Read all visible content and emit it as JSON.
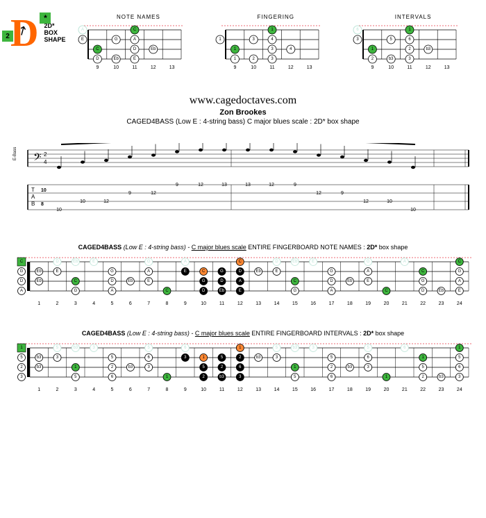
{
  "shape": {
    "letter": "D",
    "star": "*",
    "box2": "2",
    "label_line1": "2D*",
    "label_line2": "BOX",
    "label_line3": "SHAPE"
  },
  "mini": {
    "titles": [
      "NOTE NAMES",
      "FINGERING",
      "INTERVALS"
    ],
    "frets": [
      "9",
      "10",
      "11",
      "12",
      "13"
    ],
    "strings": 4,
    "diagrams": [
      {
        "notes": [
          {
            "s": 0,
            "f": 0,
            "t": "A",
            "ghost": true
          },
          {
            "s": 0,
            "f": 3,
            "t": "C",
            "root": true
          },
          {
            "s": 1,
            "f": 0,
            "t": "E"
          },
          {
            "s": 1,
            "f": 2,
            "t": "G"
          },
          {
            "s": 1,
            "f": 3,
            "t": "A"
          },
          {
            "s": 2,
            "f": 1,
            "t": "C",
            "root": true
          },
          {
            "s": 2,
            "f": 3,
            "t": "D"
          },
          {
            "s": 2,
            "f": 4,
            "t": "Eb"
          },
          {
            "s": 3,
            "f": 1,
            "t": "D"
          },
          {
            "s": 3,
            "f": 2,
            "t": "Eb"
          },
          {
            "s": 3,
            "f": 3,
            "t": "E"
          }
        ]
      },
      {
        "notes": [
          {
            "s": 0,
            "f": 3,
            "t": "1",
            "root": true
          },
          {
            "s": 1,
            "f": 0,
            "t": "1"
          },
          {
            "s": 1,
            "f": 2,
            "t": "3"
          },
          {
            "s": 1,
            "f": 3,
            "t": "4"
          },
          {
            "s": 2,
            "f": 1,
            "t": "1",
            "root": true
          },
          {
            "s": 2,
            "f": 3,
            "t": "3"
          },
          {
            "s": 2,
            "f": 4,
            "t": "4"
          },
          {
            "s": 3,
            "f": 1,
            "t": "1"
          },
          {
            "s": 3,
            "f": 2,
            "t": "2"
          },
          {
            "s": 3,
            "f": 3,
            "t": "3"
          }
        ]
      },
      {
        "notes": [
          {
            "s": 0,
            "f": 0,
            "t": "6",
            "ghost": true
          },
          {
            "s": 0,
            "f": 3,
            "t": "1",
            "root": true
          },
          {
            "s": 1,
            "f": 0,
            "t": "3"
          },
          {
            "s": 1,
            "f": 2,
            "t": "5"
          },
          {
            "s": 1,
            "f": 3,
            "t": "6"
          },
          {
            "s": 2,
            "f": 1,
            "t": "1",
            "root": true
          },
          {
            "s": 2,
            "f": 3,
            "t": "2"
          },
          {
            "s": 2,
            "f": 4,
            "t": "b3"
          },
          {
            "s": 3,
            "f": 1,
            "t": "2"
          },
          {
            "s": 3,
            "f": 2,
            "t": "b3"
          },
          {
            "s": 3,
            "f": 3,
            "t": "3"
          }
        ]
      }
    ]
  },
  "header": {
    "url": "www.cagedoctaves.com",
    "author": "Zon Brookes",
    "desc": "CAGED4BASS (Low E : 4-string bass) C major blues scale : 2D* box shape"
  },
  "tab": {
    "label": "E-Bass",
    "lines": [
      "                          9     12          13      12    9                                      ",
      "               9    12                                          12    9                           ",
      "    10   12                                                                12   10                ",
      "10                                                                                     10         "
    ]
  },
  "full": {
    "strings": [
      "G",
      "D",
      "A",
      "E"
    ],
    "fret_nums": [
      "1",
      "2",
      "3",
      "4",
      "5",
      "6",
      "7",
      "8",
      "9",
      "10",
      "11",
      "12",
      "13",
      "14",
      "15",
      "16",
      "17",
      "18",
      "19",
      "20",
      "21",
      "22",
      "23",
      "24"
    ],
    "title1_parts": {
      "a": "CAGED4BASS",
      "b": "(Low E : 4-string bass)  - ",
      "c": "C major blues scale",
      "d": " ENTIRE FINGERBOARD  NOTE NAMES : ",
      "e": "2D*",
      "f": " box shape"
    },
    "title2_parts": {
      "a": "CAGED4BASS",
      "b": "(Low E : 4-string bass)  - ",
      "c": "C major blues scale",
      "d": " ENTIRE FINGERBOARD  INTERVALS : ",
      "e": "2D*",
      "f": " box shape"
    },
    "diag1": [
      {
        "s": 0,
        "f": 0,
        "t": "C",
        "root": true
      },
      {
        "s": 0,
        "f": 2,
        "t": "D",
        "ghost": true
      },
      {
        "s": 0,
        "f": 3,
        "t": "Eb",
        "ghost": true
      },
      {
        "s": 0,
        "f": 4,
        "t": "E",
        "ghost": true
      },
      {
        "s": 0,
        "f": 7,
        "t": "G",
        "ghost": true
      },
      {
        "s": 0,
        "f": 9,
        "t": "A",
        "ghost": true
      },
      {
        "s": 0,
        "f": 12,
        "t": "C",
        "orange": true
      },
      {
        "s": 0,
        "f": 14,
        "t": "D",
        "ghost": true
      },
      {
        "s": 0,
        "f": 15,
        "t": "Eb",
        "ghost": true
      },
      {
        "s": 0,
        "f": 16,
        "t": "E",
        "ghost": true
      },
      {
        "s": 0,
        "f": 19,
        "t": "G",
        "ghost": true
      },
      {
        "s": 0,
        "f": 21,
        "t": "A",
        "ghost": true
      },
      {
        "s": 0,
        "f": 24,
        "t": "C",
        "root": true
      },
      {
        "s": 1,
        "f": 0,
        "t": "G"
      },
      {
        "s": 1,
        "f": 1,
        "t": "Eb"
      },
      {
        "s": 1,
        "f": 2,
        "t": "E"
      },
      {
        "s": 1,
        "f": 5,
        "t": "G"
      },
      {
        "s": 1,
        "f": 7,
        "t": "A"
      },
      {
        "s": 1,
        "f": 9,
        "t": "E",
        "black": true
      },
      {
        "s": 1,
        "f": 10,
        "t": "C",
        "orange": true
      },
      {
        "s": 1,
        "f": 11,
        "t": "G",
        "black": true
      },
      {
        "s": 1,
        "f": 12,
        "t": "D",
        "black": true
      },
      {
        "s": 1,
        "f": 13,
        "t": "Eb"
      },
      {
        "s": 1,
        "f": 14,
        "t": "E"
      },
      {
        "s": 1,
        "f": 17,
        "t": "G"
      },
      {
        "s": 1,
        "f": 19,
        "t": "A"
      },
      {
        "s": 1,
        "f": 22,
        "t": "C",
        "root": true
      },
      {
        "s": 1,
        "f": 24,
        "t": "G"
      },
      {
        "s": 2,
        "f": 0,
        "t": "D"
      },
      {
        "s": 2,
        "f": 1,
        "t": "Eb"
      },
      {
        "s": 2,
        "f": 3,
        "t": "C",
        "root": true
      },
      {
        "s": 2,
        "f": 5,
        "t": "D"
      },
      {
        "s": 2,
        "f": 6,
        "t": "Eb"
      },
      {
        "s": 2,
        "f": 7,
        "t": "E"
      },
      {
        "s": 2,
        "f": 10,
        "t": "G",
        "black": true
      },
      {
        "s": 2,
        "f": 11,
        "t": "D",
        "black": true
      },
      {
        "s": 2,
        "f": 12,
        "t": "A",
        "black": true
      },
      {
        "s": 2,
        "f": 15,
        "t": "C",
        "root": true
      },
      {
        "s": 2,
        "f": 17,
        "t": "D"
      },
      {
        "s": 2,
        "f": 18,
        "t": "Eb"
      },
      {
        "s": 2,
        "f": 19,
        "t": "E"
      },
      {
        "s": 2,
        "f": 22,
        "t": "G"
      },
      {
        "s": 2,
        "f": 24,
        "t": "A"
      },
      {
        "s": 3,
        "f": 0,
        "t": "A"
      },
      {
        "s": 3,
        "f": 3,
        "t": "G"
      },
      {
        "s": 3,
        "f": 5,
        "t": "A"
      },
      {
        "s": 3,
        "f": 8,
        "t": "C",
        "root": true
      },
      {
        "s": 3,
        "f": 10,
        "t": "D",
        "black": true
      },
      {
        "s": 3,
        "f": 11,
        "t": "Eb",
        "black": true
      },
      {
        "s": 3,
        "f": 12,
        "t": "E",
        "black": true
      },
      {
        "s": 3,
        "f": 15,
        "t": "G"
      },
      {
        "s": 3,
        "f": 17,
        "t": "A"
      },
      {
        "s": 3,
        "f": 20,
        "t": "C",
        "root": true
      },
      {
        "s": 3,
        "f": 22,
        "t": "D"
      },
      {
        "s": 3,
        "f": 23,
        "t": "Eb"
      },
      {
        "s": 3,
        "f": 24,
        "t": "E"
      }
    ],
    "diag2": [
      {
        "s": 0,
        "f": 0,
        "t": "1",
        "root": true
      },
      {
        "s": 0,
        "f": 2,
        "t": "5",
        "ghost": true
      },
      {
        "s": 0,
        "f": 3,
        "t": "b3",
        "ghost": true
      },
      {
        "s": 0,
        "f": 4,
        "t": "3",
        "ghost": true
      },
      {
        "s": 0,
        "f": 7,
        "t": "5",
        "ghost": true
      },
      {
        "s": 0,
        "f": 9,
        "t": "6",
        "ghost": true
      },
      {
        "s": 0,
        "f": 12,
        "t": "1",
        "orange": true
      },
      {
        "s": 0,
        "f": 14,
        "t": "5",
        "ghost": true
      },
      {
        "s": 0,
        "f": 15,
        "t": "b3",
        "ghost": true
      },
      {
        "s": 0,
        "f": 16,
        "t": "3",
        "ghost": true
      },
      {
        "s": 0,
        "f": 19,
        "t": "5",
        "ghost": true
      },
      {
        "s": 0,
        "f": 21,
        "t": "6",
        "ghost": true
      },
      {
        "s": 0,
        "f": 24,
        "t": "1",
        "root": true
      },
      {
        "s": 1,
        "f": 0,
        "t": "5"
      },
      {
        "s": 1,
        "f": 1,
        "t": "b3"
      },
      {
        "s": 1,
        "f": 2,
        "t": "3"
      },
      {
        "s": 1,
        "f": 5,
        "t": "5"
      },
      {
        "s": 1,
        "f": 7,
        "t": "6"
      },
      {
        "s": 1,
        "f": 9,
        "t": "3",
        "black": true
      },
      {
        "s": 1,
        "f": 10,
        "t": "1",
        "orange": true
      },
      {
        "s": 1,
        "f": 11,
        "t": "5",
        "black": true
      },
      {
        "s": 1,
        "f": 12,
        "t": "2",
        "black": true
      },
      {
        "s": 1,
        "f": 13,
        "t": "b3"
      },
      {
        "s": 1,
        "f": 14,
        "t": "3"
      },
      {
        "s": 1,
        "f": 17,
        "t": "5"
      },
      {
        "s": 1,
        "f": 19,
        "t": "6"
      },
      {
        "s": 1,
        "f": 22,
        "t": "1",
        "root": true
      },
      {
        "s": 1,
        "f": 24,
        "t": "5"
      },
      {
        "s": 2,
        "f": 0,
        "t": "2"
      },
      {
        "s": 2,
        "f": 1,
        "t": "b3"
      },
      {
        "s": 2,
        "f": 3,
        "t": "1",
        "root": true
      },
      {
        "s": 2,
        "f": 5,
        "t": "2"
      },
      {
        "s": 2,
        "f": 6,
        "t": "b3"
      },
      {
        "s": 2,
        "f": 7,
        "t": "3"
      },
      {
        "s": 2,
        "f": 10,
        "t": "5",
        "black": true
      },
      {
        "s": 2,
        "f": 11,
        "t": "2",
        "black": true
      },
      {
        "s": 2,
        "f": 12,
        "t": "6",
        "black": true
      },
      {
        "s": 2,
        "f": 15,
        "t": "1",
        "root": true
      },
      {
        "s": 2,
        "f": 17,
        "t": "2"
      },
      {
        "s": 2,
        "f": 18,
        "t": "b3"
      },
      {
        "s": 2,
        "f": 19,
        "t": "3"
      },
      {
        "s": 2,
        "f": 22,
        "t": "5"
      },
      {
        "s": 2,
        "f": 24,
        "t": "6"
      },
      {
        "s": 3,
        "f": 0,
        "t": "3"
      },
      {
        "s": 3,
        "f": 3,
        "t": "5"
      },
      {
        "s": 3,
        "f": 5,
        "t": "6"
      },
      {
        "s": 3,
        "f": 8,
        "t": "1",
        "root": true
      },
      {
        "s": 3,
        "f": 10,
        "t": "2",
        "black": true
      },
      {
        "s": 3,
        "f": 11,
        "t": "b3",
        "black": true
      },
      {
        "s": 3,
        "f": 12,
        "t": "3",
        "black": true
      },
      {
        "s": 3,
        "f": 15,
        "t": "5"
      },
      {
        "s": 3,
        "f": 17,
        "t": "6"
      },
      {
        "s": 3,
        "f": 20,
        "t": "1",
        "root": true
      },
      {
        "s": 3,
        "f": 22,
        "t": "2"
      },
      {
        "s": 3,
        "f": 23,
        "t": "b3"
      },
      {
        "s": 3,
        "f": 24,
        "t": "3"
      }
    ]
  },
  "colors": {
    "root": "#3eb53e",
    "orange": "#ff8833",
    "ghost": "#bde5d8",
    "red_dash": "#e63946"
  }
}
